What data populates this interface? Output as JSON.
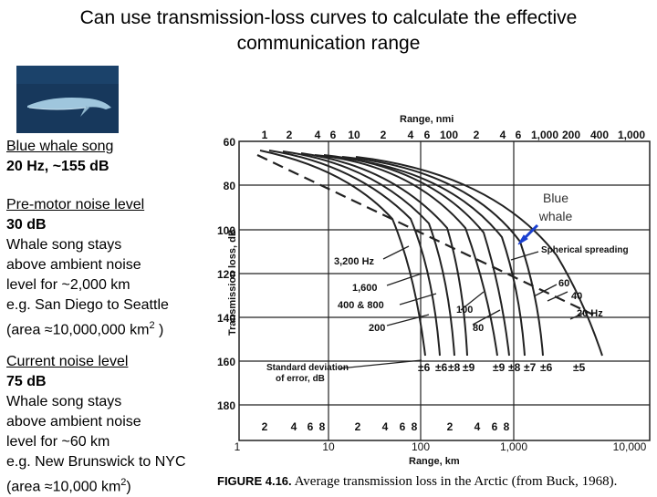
{
  "title_line1": "Can use transmission-loss curves to calculate the effective",
  "title_line2": "communication range",
  "photo_icon": "blue-whale-photo",
  "song": {
    "heading": "Blue whale song",
    "value": "20 Hz, ~155 dB"
  },
  "premotor": {
    "heading": "Pre-motor noise level",
    "value": "30 dB",
    "lines": [
      "Whale song stays",
      "above ambient noise",
      "level for ~2,000 km",
      "e.g. San Diego to Seattle"
    ],
    "area_prefix": "(area ≈10,000,000 km",
    "area_sup": "2",
    "area_suffix": " )"
  },
  "current": {
    "heading": "Current noise level",
    "value": "75 dB",
    "lines": [
      "Whale song stays",
      "above ambient noise",
      "level for ~60 km",
      "e.g. New Brunswick to NYC"
    ],
    "area_prefix": "(area ≈10,000 km",
    "area_sup": "2",
    "area_suffix": ")"
  },
  "whale_label": [
    "Blue",
    "whale"
  ],
  "figure": {
    "top_axis_label": "Range, nmi",
    "top_ticks": [
      "1",
      "2",
      "4",
      "6",
      "10",
      "2",
      "4",
      "6",
      "100",
      "2",
      "4",
      "6",
      "1,000",
      "200",
      "400",
      "1,000"
    ],
    "bottom_axis_label": "Range, km",
    "bottom_minor": [
      "2",
      "4",
      "6",
      "8",
      "2",
      "4",
      "6",
      "8",
      "2",
      "4",
      "6",
      "8"
    ],
    "bottom_major": [
      "1",
      "10",
      "100",
      "1,000",
      "10,000"
    ],
    "y_label": "Transmission loss, dB",
    "y_ticks": [
      "60",
      "80",
      "100",
      "120",
      "140",
      "160",
      "180"
    ],
    "curve_labels": [
      "3,200 Hz",
      "1,600",
      "400 & 800",
      "200",
      "100",
      "80",
      "60",
      "40",
      "20 Hz",
      "Spherical spreading"
    ],
    "std_label": [
      "Standard deviation",
      "of error, dB"
    ],
    "std_values": [
      "±6",
      "±6",
      "±8",
      "±9",
      "±9",
      "±8",
      "±7",
      "±6",
      "±5"
    ],
    "caption_bold": "FIGURE 4.16.",
    "caption_text": "  Average transmission loss in the Arctic (from Buck, 1968)."
  }
}
